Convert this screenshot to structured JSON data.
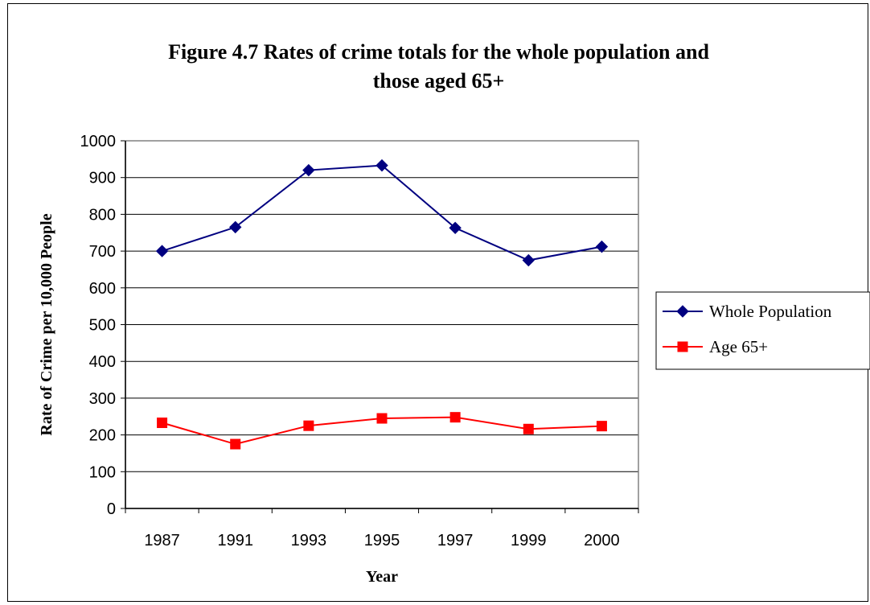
{
  "chart_data": {
    "type": "line",
    "title_line1": "Figure 4.7 Rates of crime totals for the whole population and",
    "title_line2": "those aged 65+",
    "xlabel": "Year",
    "ylabel": "Rate of Crime per 10,000 People",
    "categories": [
      "1987",
      "1991",
      "1993",
      "1995",
      "1997",
      "1999",
      "2000"
    ],
    "ylim": [
      0,
      1000
    ],
    "yticks": [
      0,
      100,
      200,
      300,
      400,
      500,
      600,
      700,
      800,
      900,
      1000
    ],
    "grid": true,
    "legend_position": "right",
    "series": [
      {
        "name": "Whole Population",
        "values": [
          700,
          765,
          920,
          933,
          763,
          675,
          712
        ],
        "color": "#000080",
        "marker": "diamond"
      },
      {
        "name": "Age 65+",
        "values": [
          233,
          175,
          225,
          245,
          248,
          216,
          224
        ],
        "color": "#ff0000",
        "marker": "square"
      }
    ]
  }
}
